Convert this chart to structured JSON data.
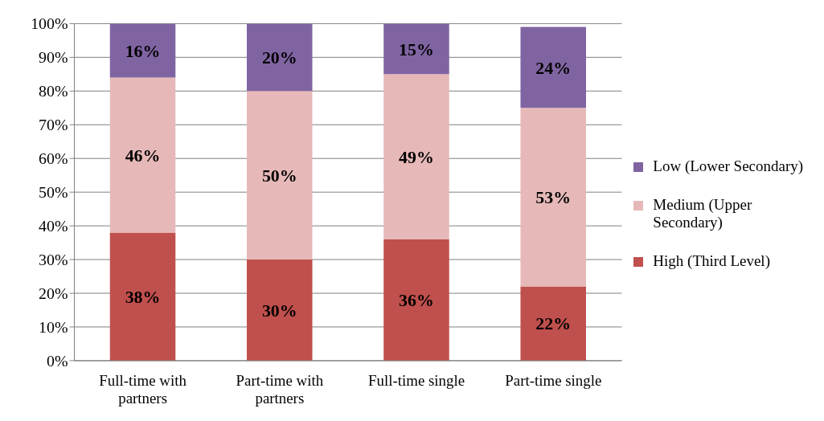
{
  "chart_data": {
    "type": "bar",
    "stacked": true,
    "categories": [
      "Full-time with partners",
      "Part-time with partners",
      "Full-time single",
      "Part-time single"
    ],
    "series": [
      {
        "name": "High (Third Level)",
        "color": "#c0504d",
        "values": [
          38,
          30,
          36,
          22
        ],
        "value_labels": [
          "38%",
          "30%",
          "36%",
          "22%"
        ]
      },
      {
        "name": "Medium (Upper Secondary)",
        "color": "#e6b9b8",
        "values": [
          46,
          50,
          49,
          53
        ],
        "value_labels": [
          "46%",
          "50%",
          "49%",
          "53%"
        ]
      },
      {
        "name": "Low (Lower Secondary)",
        "color": "#8064a2",
        "values": [
          16,
          20,
          15,
          24
        ],
        "value_labels": [
          "16%",
          "20%",
          "15%",
          "24%"
        ]
      }
    ],
    "ylim": [
      0,
      100
    ],
    "yticks": [
      {
        "value": 0,
        "label": "0%"
      },
      {
        "value": 10,
        "label": "10%"
      },
      {
        "value": 20,
        "label": "20%"
      },
      {
        "value": 30,
        "label": "30%"
      },
      {
        "value": 40,
        "label": "40%"
      },
      {
        "value": 50,
        "label": "50%"
      },
      {
        "value": 60,
        "label": "60%"
      },
      {
        "value": 70,
        "label": "70%"
      },
      {
        "value": 80,
        "label": "80%"
      },
      {
        "value": 90,
        "label": "90%"
      },
      {
        "value": 100,
        "label": "100%"
      }
    ],
    "grid": "y",
    "legend": "right"
  }
}
